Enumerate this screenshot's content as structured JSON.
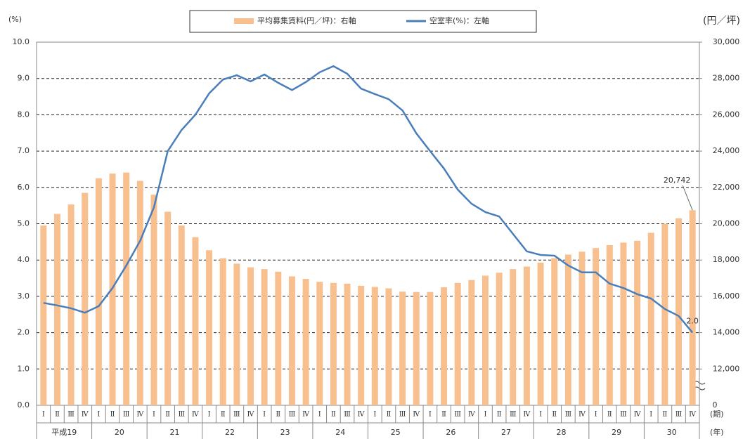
{
  "chart_data": {
    "type": "bar-line",
    "y_label": "(%)",
    "y2_label": "(円／坪)",
    "x_label": "(期)",
    "group_label": "(年)",
    "categories": [
      "Ⅰ",
      "Ⅱ",
      "Ⅲ",
      "Ⅳ",
      "Ⅰ",
      "Ⅱ",
      "Ⅲ",
      "Ⅳ",
      "Ⅰ",
      "Ⅱ",
      "Ⅲ",
      "Ⅳ",
      "Ⅰ",
      "Ⅱ",
      "Ⅲ",
      "Ⅳ",
      "Ⅰ",
      "Ⅱ",
      "Ⅲ",
      "Ⅳ",
      "Ⅰ",
      "Ⅱ",
      "Ⅲ",
      "Ⅳ",
      "Ⅰ",
      "Ⅱ",
      "Ⅲ",
      "Ⅳ",
      "Ⅰ",
      "Ⅱ",
      "Ⅲ",
      "Ⅳ",
      "Ⅰ",
      "Ⅱ",
      "Ⅲ",
      "Ⅳ",
      "Ⅰ",
      "Ⅱ",
      "Ⅲ",
      "Ⅳ",
      "Ⅰ",
      "Ⅱ",
      "Ⅲ",
      "Ⅳ",
      "Ⅰ",
      "Ⅱ",
      "Ⅲ",
      "Ⅳ"
    ],
    "groups": [
      "平成19",
      "20",
      "21",
      "22",
      "23",
      "24",
      "25",
      "26",
      "27",
      "28",
      "29",
      "30"
    ],
    "series": [
      {
        "name": "平均募集賃料(円／坪)：右軸",
        "kind": "bar",
        "axis": "y2",
        "color": "#f9c08f",
        "values": [
          19900,
          20540,
          21060,
          21700,
          22500,
          22760,
          22820,
          22360,
          21600,
          20660,
          19900,
          19260,
          18540,
          18100,
          17800,
          17600,
          17500,
          17360,
          17100,
          16960,
          16800,
          16740,
          16700,
          16580,
          16520,
          16440,
          16260,
          16240,
          16240,
          16500,
          16740,
          16900,
          17140,
          17300,
          17500,
          17640,
          17860,
          18100,
          18300,
          18460,
          18660,
          18820,
          18960,
          19060,
          19500,
          20000,
          20300,
          20742
        ],
        "value_labels": [
          null,
          null,
          null,
          null,
          null,
          null,
          null,
          null,
          null,
          null,
          null,
          null,
          null,
          null,
          null,
          null,
          null,
          null,
          null,
          null,
          null,
          null,
          null,
          null,
          null,
          null,
          null,
          null,
          null,
          null,
          null,
          null,
          null,
          null,
          null,
          null,
          null,
          null,
          null,
          null,
          null,
          null,
          null,
          null,
          null,
          null,
          null,
          "20,742"
        ]
      },
      {
        "name": "空室率(%)：左軸",
        "kind": "line",
        "axis": "y",
        "color": "#4a7ebb",
        "values": [
          2.82,
          2.75,
          2.67,
          2.55,
          2.73,
          3.23,
          3.85,
          4.53,
          5.45,
          7.0,
          7.58,
          8.0,
          8.59,
          8.97,
          9.09,
          8.92,
          9.11,
          8.88,
          8.68,
          8.9,
          9.17,
          9.34,
          9.13,
          8.72,
          8.57,
          8.43,
          8.12,
          7.49,
          7.0,
          6.52,
          5.94,
          5.55,
          5.32,
          5.2,
          4.72,
          4.24,
          4.14,
          4.12,
          3.85,
          3.66,
          3.66,
          3.35,
          3.23,
          3.06,
          2.94,
          2.65,
          2.46,
          2.0
        ],
        "value_labels": [
          null,
          null,
          null,
          null,
          null,
          null,
          null,
          null,
          null,
          null,
          null,
          null,
          null,
          null,
          null,
          null,
          null,
          null,
          null,
          null,
          null,
          null,
          null,
          null,
          null,
          null,
          null,
          null,
          null,
          null,
          null,
          null,
          null,
          null,
          null,
          null,
          null,
          null,
          null,
          null,
          null,
          null,
          null,
          null,
          null,
          null,
          null,
          "2.0"
        ]
      }
    ],
    "ylim": [
      0,
      10
    ],
    "yticks": [
      {
        "value": 0,
        "label": "0.0"
      },
      {
        "value": 1,
        "label": "1.0"
      },
      {
        "value": 2,
        "label": "2.0"
      },
      {
        "value": 3,
        "label": "3.0"
      },
      {
        "value": 4,
        "label": "4.0"
      },
      {
        "value": 5,
        "label": "5.0"
      },
      {
        "value": 6,
        "label": "6.0"
      },
      {
        "value": 7,
        "label": "7.0"
      },
      {
        "value": 8,
        "label": "8.0"
      },
      {
        "value": 9,
        "label": "9.0"
      },
      {
        "value": 10,
        "label": "10.0"
      }
    ],
    "y2lim": [
      10000,
      30000
    ],
    "y2ticks": [
      {
        "value": 12000,
        "label": "12,000"
      },
      {
        "value": 14000,
        "label": "14,000"
      },
      {
        "value": 16000,
        "label": "16,000"
      },
      {
        "value": 18000,
        "label": "18,000"
      },
      {
        "value": 20000,
        "label": "20,000"
      },
      {
        "value": 22000,
        "label": "22,000"
      },
      {
        "value": 24000,
        "label": "24,000"
      },
      {
        "value": 26000,
        "label": "26,000"
      },
      {
        "value": 28000,
        "label": "28,000"
      },
      {
        "value": 30000,
        "label": "30,000"
      }
    ],
    "y2_break_label": "0",
    "grid": true
  }
}
